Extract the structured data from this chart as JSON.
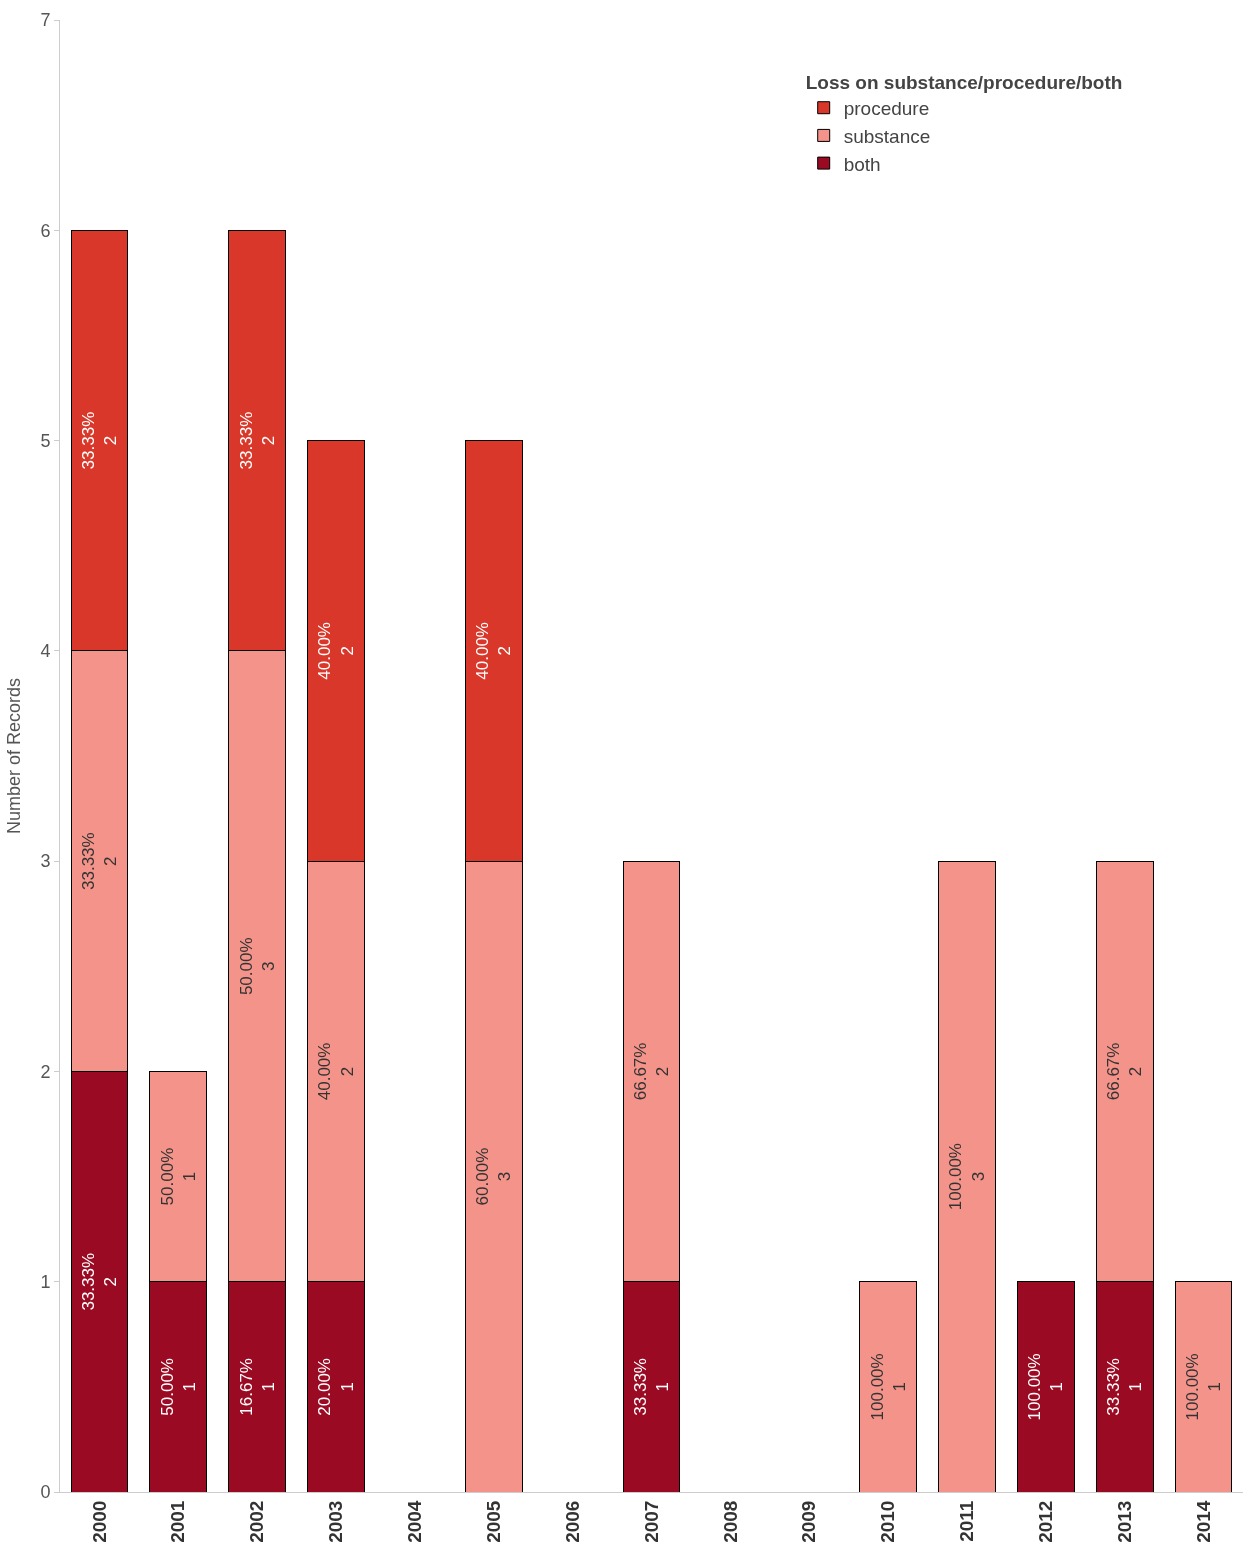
{
  "chart_data": {
    "type": "bar",
    "stacked": true,
    "ylabel": "Number of Records",
    "legend_title": "Loss on substance/procedure/both",
    "legend": "top right",
    "categories": [
      "2000",
      "2001",
      "2002",
      "2003",
      "2004",
      "2005",
      "2006",
      "2007",
      "2008",
      "2009",
      "2010",
      "2011",
      "2012",
      "2013",
      "2014"
    ],
    "series": [
      {
        "name": "both",
        "color": "#9b0a23",
        "values": [
          2,
          1,
          1,
          1,
          null,
          null,
          null,
          1,
          null,
          null,
          null,
          null,
          1,
          1,
          null
        ],
        "value_labels": [
          "33.33%\n2",
          "50.00%\n1",
          "16.67%\n1",
          "20.00%\n1",
          null,
          null,
          null,
          "33.33%\n1",
          null,
          null,
          null,
          null,
          "100.00%\n1",
          "33.33%\n1",
          null
        ]
      },
      {
        "name": "substance",
        "color": "#f4938a",
        "values": [
          2,
          1,
          3,
          2,
          null,
          3,
          null,
          2,
          null,
          null,
          1,
          3,
          null,
          2,
          1
        ],
        "value_labels": [
          "33.33%\n2",
          "50.00%\n1",
          "50.00%\n3",
          "40.00%\n2",
          null,
          "60.00%\n3",
          null,
          "66.67%\n2",
          null,
          null,
          "100.00%\n1",
          "100.00%\n3",
          null,
          "66.67%\n2",
          "100.00%\n1"
        ]
      },
      {
        "name": "procedure",
        "color": "#d9372a",
        "values": [
          2,
          null,
          2,
          2,
          null,
          2,
          null,
          null,
          null,
          null,
          null,
          null,
          null,
          null,
          null
        ],
        "value_labels": [
          "33.33%\n2",
          null,
          "33.33%\n2",
          "40.00%\n2",
          null,
          "40.00%\n2",
          null,
          null,
          null,
          null,
          null,
          null,
          null,
          null,
          null
        ]
      }
    ],
    "ylim": [
      0,
      7
    ],
    "yticks": [
      0,
      1,
      2,
      3,
      4,
      5,
      6,
      7
    ]
  }
}
